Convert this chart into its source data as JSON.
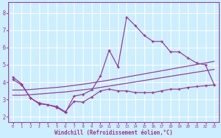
{
  "xlabel": "Windchill (Refroidissement éolien,°C)",
  "bg_color": "#cceeff",
  "line_color": "#993399",
  "grid_color": "#ffffff",
  "x_ticks": [
    0,
    1,
    2,
    3,
    4,
    5,
    6,
    7,
    8,
    9,
    10,
    11,
    12,
    13,
    14,
    15,
    16,
    17,
    18,
    19,
    20,
    21,
    22,
    23
  ],
  "y_ticks": [
    2,
    3,
    4,
    5,
    6,
    7,
    8
  ],
  "ylim": [
    1.7,
    8.6
  ],
  "xlim": [
    -0.5,
    23.5
  ],
  "line1_x": [
    0,
    1,
    2,
    3,
    4,
    5,
    6,
    7,
    8,
    9,
    10,
    11,
    12,
    13,
    14,
    15,
    16,
    17,
    18,
    19,
    20,
    21,
    22,
    23
  ],
  "line1_y": [
    4.3,
    3.9,
    3.1,
    2.8,
    2.7,
    2.55,
    2.25,
    3.2,
    3.3,
    3.55,
    4.35,
    5.85,
    4.9,
    7.75,
    7.25,
    6.7,
    6.35,
    6.35,
    5.75,
    5.75,
    5.4,
    5.1,
    5.0,
    3.85
  ],
  "line2_x": [
    0,
    1,
    2,
    3,
    4,
    5,
    6,
    7,
    8,
    9,
    10,
    11,
    12,
    13,
    14,
    15,
    16,
    17,
    18,
    19,
    20,
    21,
    22,
    23
  ],
  "line2_y": [
    4.15,
    3.85,
    3.1,
    2.75,
    2.7,
    2.6,
    2.3,
    2.9,
    2.85,
    3.15,
    3.5,
    3.6,
    3.5,
    3.5,
    3.4,
    3.4,
    3.4,
    3.5,
    3.6,
    3.6,
    3.7,
    3.75,
    3.8,
    3.85
  ],
  "line3_x": [
    0,
    1,
    2,
    3,
    4,
    5,
    6,
    7,
    8,
    9,
    10,
    11,
    12,
    13,
    14,
    15,
    16,
    17,
    18,
    19,
    20,
    21,
    22,
    23
  ],
  "line3_y": [
    3.25,
    3.25,
    3.28,
    3.32,
    3.36,
    3.4,
    3.44,
    3.5,
    3.56,
    3.62,
    3.7,
    3.78,
    3.86,
    3.94,
    4.02,
    4.1,
    4.18,
    4.26,
    4.34,
    4.42,
    4.5,
    4.58,
    4.66,
    4.74
  ],
  "line4_x": [
    0,
    1,
    2,
    3,
    4,
    5,
    6,
    7,
    8,
    9,
    10,
    11,
    12,
    13,
    14,
    15,
    16,
    17,
    18,
    19,
    20,
    21,
    22,
    23
  ],
  "line4_y": [
    3.55,
    3.55,
    3.58,
    3.62,
    3.66,
    3.7,
    3.75,
    3.82,
    3.88,
    3.96,
    4.04,
    4.12,
    4.21,
    4.3,
    4.39,
    4.48,
    4.57,
    4.66,
    4.75,
    4.84,
    4.93,
    5.02,
    5.11,
    5.2
  ]
}
